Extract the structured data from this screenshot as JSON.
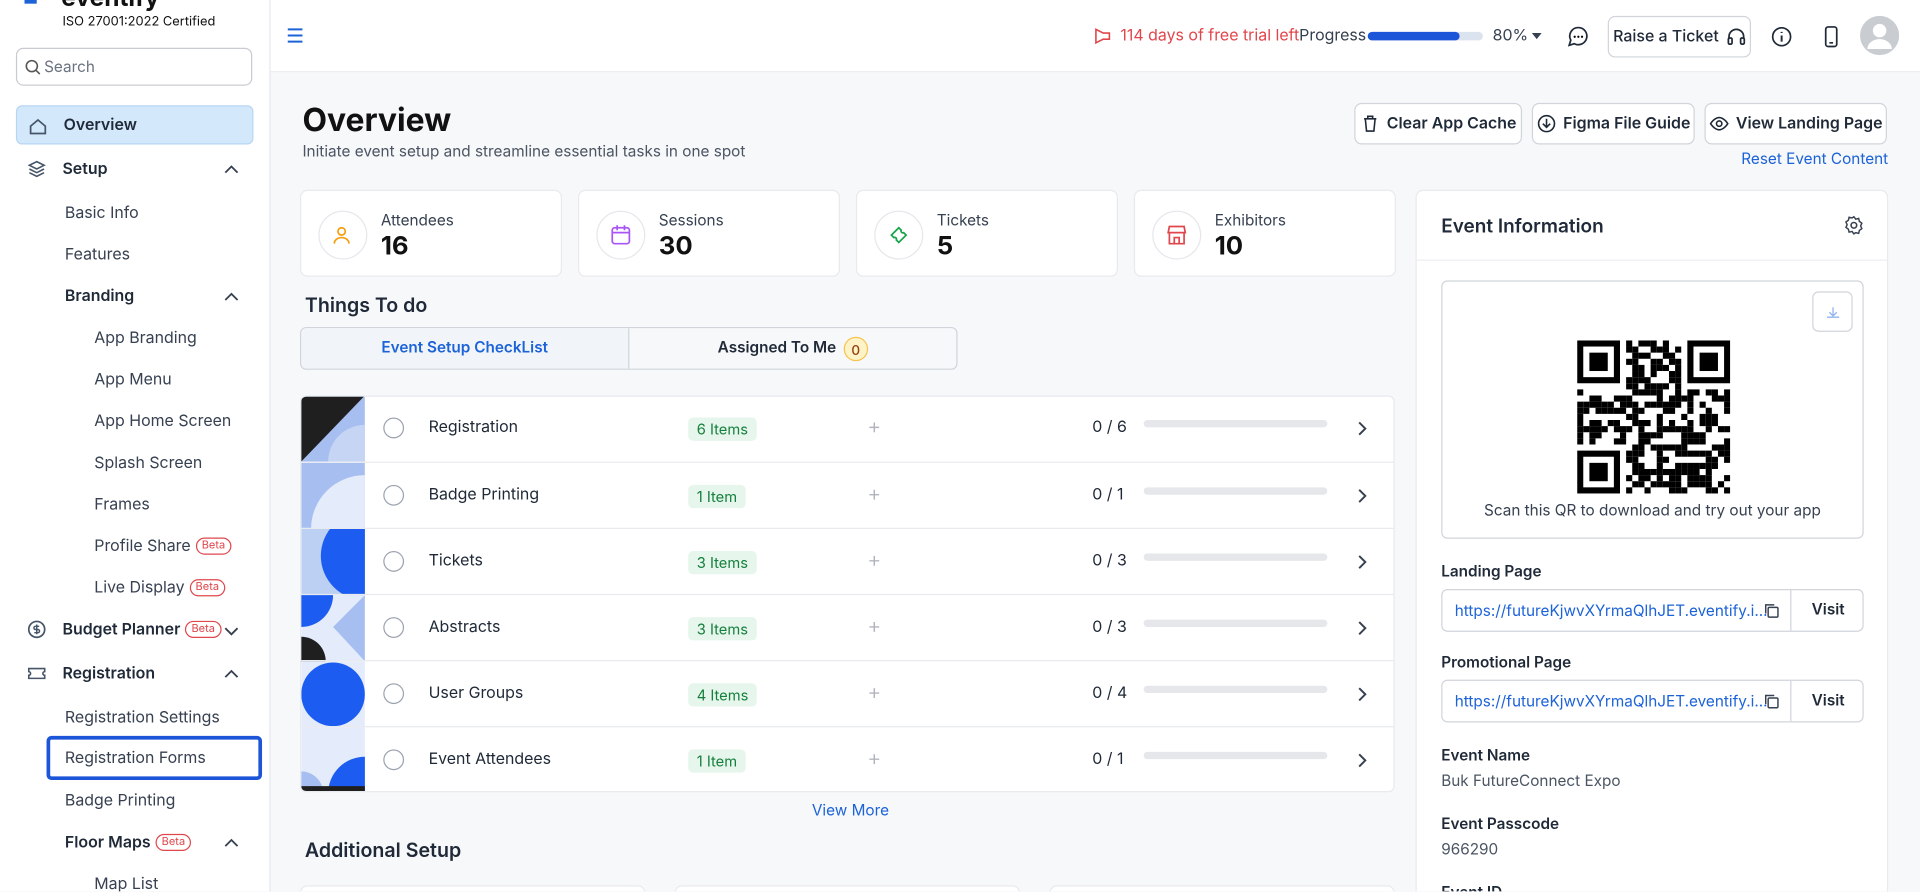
{
  "sidebar": {
    "brand": "eventify",
    "certification": "ISO 27001:2022 Certified",
    "search_placeholder": "Search",
    "nav": [
      {
        "label": "Overview"
      },
      {
        "label": "Setup",
        "children": [
          {
            "label": "Basic Info"
          },
          {
            "label": "Features"
          },
          {
            "label": "Branding",
            "children": [
              {
                "label": "App Branding"
              },
              {
                "label": "App Menu"
              },
              {
                "label": "App Home Screen"
              },
              {
                "label": "Splash Screen"
              },
              {
                "label": "Frames"
              },
              {
                "label": "Profile Share",
                "badge": "Beta"
              },
              {
                "label": "Live Display",
                "badge": "Beta"
              }
            ]
          }
        ]
      },
      {
        "label": "Budget Planner",
        "badge": "Beta",
        "children": []
      },
      {
        "label": "Registration",
        "children": [
          {
            "label": "Registration Settings"
          },
          {
            "label": "Registration Forms"
          },
          {
            "label": "Badge Printing"
          },
          {
            "label": "Floor Maps",
            "badge": "Beta",
            "children": [
              {
                "label": "Map List"
              }
            ]
          }
        ]
      }
    ]
  },
  "header": {
    "trial": "114 days of free trial left",
    "progress_label": "Progress",
    "progress_value": "80%",
    "ticket_button": "Raise a Ticket"
  },
  "overview": {
    "title": "Overview",
    "subtitle": "Initiate event setup and streamline essential tasks in one spot",
    "buttons": [
      "Clear App Cache",
      "Figma File Guide",
      "View Landing Page"
    ],
    "reset_link": "Reset Event Content",
    "stats": [
      {
        "label": "Attendees",
        "value": "16"
      },
      {
        "label": "Sessions",
        "value": "30"
      },
      {
        "label": "Tickets",
        "value": "5"
      },
      {
        "label": "Exhibitors",
        "value": "10"
      }
    ]
  },
  "todo": {
    "title": "Things To do",
    "tabs": [
      {
        "label": "Event Setup CheckList"
      },
      {
        "label": "Assigned To Me",
        "count": "0"
      }
    ],
    "rows": [
      {
        "name": "Registration",
        "items": "6 Items",
        "progress": "0 / 6"
      },
      {
        "name": "Badge Printing",
        "items": "1 Item",
        "progress": "0 / 1"
      },
      {
        "name": "Tickets",
        "items": "3 Items",
        "progress": "0 / 3"
      },
      {
        "name": "Abstracts",
        "items": "3 Items",
        "progress": "0 / 3"
      },
      {
        "name": "User Groups",
        "items": "4 Items",
        "progress": "0 / 4"
      },
      {
        "name": "Event Attendees",
        "items": "1 Item",
        "progress": "0 / 1"
      }
    ],
    "view_more": "View More",
    "additional": "Additional Setup"
  },
  "event_info": {
    "title": "Event Information",
    "qr_caption": "Scan this QR to download and try out your app",
    "links": [
      {
        "label": "Landing Page",
        "url": "https://futureKjwvXYrmaQlhJET.eventify.i...",
        "action": "Visit"
      },
      {
        "label": "Promotional Page",
        "url": "https://futureKjwvXYrmaQlhJET.eventify.i...",
        "action": "Visit"
      }
    ],
    "fields": [
      {
        "label": "Event Name",
        "value": "Buk FutureConnect Expo"
      },
      {
        "label": "Event Passcode",
        "value": "966290"
      },
      {
        "label": "Event ID"
      }
    ]
  }
}
